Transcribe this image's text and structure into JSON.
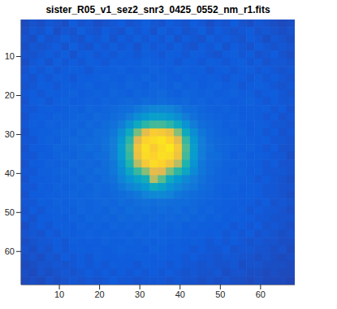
{
  "chart_data": {
    "type": "heatmap",
    "title": "sister_R05_v1_sez2_snr3_0425_0552_nm_r1.fits",
    "x": [
      1.5,
      3.5,
      5.5,
      7.5,
      9.5,
      11.5,
      13.5,
      15.5,
      17.5,
      19.5,
      21.5,
      23.5,
      25.5,
      27.5,
      29.5,
      31.5,
      33.5,
      35.5,
      37.5,
      39.5,
      41.5,
      43.5,
      45.5,
      47.5,
      49.5,
      51.5,
      53.5,
      55.5,
      57.5,
      59.5,
      61.5,
      63.5,
      65.5,
      67.5
    ],
    "y": [
      1.5,
      3.5,
      5.5,
      7.5,
      9.5,
      11.5,
      13.5,
      15.5,
      17.5,
      19.5,
      21.5,
      23.5,
      25.5,
      27.5,
      29.5,
      31.5,
      33.5,
      35.5,
      37.5,
      39.5,
      41.5,
      43.5,
      45.5,
      47.5,
      49.5,
      51.5,
      53.5,
      55.5,
      57.5,
      59.5,
      61.5,
      63.5,
      65.5,
      67.5
    ],
    "cells": [
      [
        7,
        9,
        8,
        10,
        9,
        8,
        11,
        9,
        10,
        8,
        9,
        10,
        11,
        9,
        10,
        12,
        10,
        9,
        11,
        10,
        9,
        11,
        10,
        8,
        10,
        9,
        11,
        9,
        8,
        10,
        9,
        8,
        7,
        8
      ],
      [
        8,
        10,
        9,
        11,
        8,
        10,
        9,
        12,
        10,
        9,
        11,
        10,
        9,
        12,
        10,
        11,
        9,
        12,
        10,
        11,
        9,
        10,
        12,
        9,
        11,
        10,
        9,
        10,
        11,
        9,
        10,
        9,
        8,
        9
      ],
      [
        9,
        8,
        11,
        9,
        10,
        12,
        10,
        9,
        11,
        10,
        12,
        9,
        11,
        10,
        12,
        10,
        11,
        10,
        12,
        9,
        11,
        10,
        9,
        12,
        10,
        11,
        10,
        9,
        11,
        10,
        8,
        10,
        9,
        8
      ],
      [
        8,
        10,
        9,
        10,
        11,
        9,
        12,
        10,
        9,
        11,
        10,
        12,
        10,
        11,
        9,
        12,
        10,
        11,
        10,
        12,
        10,
        9,
        11,
        10,
        12,
        9,
        11,
        10,
        9,
        11,
        10,
        9,
        10,
        9
      ],
      [
        9,
        9,
        10,
        11,
        10,
        12,
        9,
        11,
        12,
        10,
        11,
        10,
        12,
        11,
        10,
        12,
        11,
        10,
        12,
        11,
        10,
        12,
        11,
        10,
        9,
        11,
        12,
        10,
        11,
        9,
        10,
        11,
        9,
        8
      ],
      [
        8,
        10,
        11,
        9,
        12,
        10,
        11,
        10,
        12,
        11,
        10,
        12,
        11,
        12,
        11,
        13,
        12,
        11,
        12,
        10,
        12,
        11,
        10,
        12,
        11,
        10,
        11,
        12,
        10,
        11,
        9,
        10,
        10,
        9
      ],
      [
        9,
        11,
        10,
        12,
        10,
        11,
        12,
        11,
        10,
        12,
        11,
        12,
        13,
        11,
        12,
        12,
        13,
        12,
        11,
        13,
        12,
        11,
        12,
        10,
        11,
        12,
        10,
        11,
        12,
        10,
        11,
        10,
        9,
        10
      ],
      [
        10,
        9,
        11,
        10,
        12,
        11,
        10,
        12,
        11,
        12,
        13,
        12,
        11,
        13,
        12,
        14,
        12,
        13,
        12,
        11,
        13,
        12,
        11,
        12,
        11,
        10,
        12,
        11,
        10,
        12,
        10,
        11,
        10,
        9
      ],
      [
        9,
        10,
        12,
        11,
        10,
        12,
        11,
        12,
        13,
        11,
        12,
        13,
        12,
        14,
        13,
        12,
        14,
        13,
        12,
        14,
        12,
        13,
        11,
        12,
        13,
        11,
        12,
        10,
        11,
        12,
        11,
        10,
        9,
        10
      ],
      [
        10,
        11,
        10,
        12,
        11,
        12,
        13,
        11,
        12,
        13,
        12,
        14,
        13,
        12,
        14,
        13,
        14,
        15,
        13,
        12,
        14,
        13,
        12,
        13,
        11,
        12,
        13,
        11,
        12,
        10,
        11,
        12,
        10,
        9
      ],
      [
        9,
        11,
        12,
        10,
        12,
        13,
        11,
        12,
        13,
        12,
        14,
        13,
        14,
        15,
        14,
        16,
        15,
        16,
        15,
        14,
        15,
        13,
        14,
        12,
        13,
        12,
        11,
        12,
        13,
        11,
        10,
        11,
        10,
        10
      ],
      [
        10,
        10,
        11,
        12,
        11,
        12,
        13,
        12,
        14,
        13,
        14,
        15,
        16,
        17,
        20,
        23,
        25,
        25,
        24,
        21,
        17,
        16,
        14,
        13,
        12,
        13,
        12,
        11,
        12,
        11,
        12,
        10,
        11,
        9
      ],
      [
        9,
        11,
        12,
        11,
        13,
        12,
        13,
        14,
        13,
        15,
        14,
        16,
        18,
        22,
        28,
        32,
        35,
        35,
        32,
        28,
        22,
        18,
        15,
        14,
        13,
        12,
        13,
        11,
        12,
        11,
        10,
        11,
        9,
        10
      ],
      [
        10,
        12,
        11,
        13,
        12,
        13,
        14,
        13,
        15,
        14,
        16,
        18,
        22,
        30,
        40,
        48,
        52,
        52,
        48,
        40,
        30,
        22,
        17,
        15,
        14,
        12,
        13,
        12,
        11,
        12,
        11,
        10,
        10,
        9
      ],
      [
        9,
        11,
        12,
        12,
        13,
        14,
        13,
        15,
        14,
        16,
        17,
        20,
        28,
        40,
        60,
        80,
        88,
        86,
        82,
        62,
        40,
        28,
        20,
        16,
        14,
        13,
        12,
        13,
        11,
        12,
        10,
        11,
        9,
        10
      ],
      [
        10,
        10,
        12,
        13,
        12,
        14,
        15,
        14,
        15,
        16,
        18,
        22,
        32,
        48,
        78,
        90,
        92,
        94,
        90,
        80,
        50,
        32,
        22,
        17,
        15,
        14,
        13,
        12,
        12,
        11,
        12,
        10,
        10,
        9
      ],
      [
        9,
        11,
        11,
        12,
        14,
        13,
        14,
        15,
        16,
        15,
        18,
        22,
        34,
        52,
        84,
        93,
        88,
        92,
        95,
        86,
        54,
        34,
        22,
        18,
        15,
        14,
        13,
        12,
        13,
        11,
        10,
        11,
        9,
        9
      ],
      [
        10,
        10,
        12,
        11,
        13,
        14,
        13,
        15,
        14,
        16,
        17,
        22,
        33,
        50,
        82,
        92,
        90,
        93,
        92,
        84,
        52,
        33,
        22,
        17,
        16,
        14,
        12,
        13,
        11,
        12,
        11,
        10,
        10,
        8
      ],
      [
        9,
        11,
        11,
        13,
        12,
        13,
        15,
        14,
        15,
        14,
        17,
        20,
        30,
        46,
        70,
        86,
        92,
        90,
        84,
        70,
        46,
        30,
        20,
        16,
        15,
        13,
        13,
        12,
        12,
        11,
        10,
        11,
        9,
        9
      ],
      [
        10,
        10,
        12,
        12,
        13,
        14,
        13,
        15,
        14,
        16,
        16,
        20,
        27,
        38,
        50,
        62,
        80,
        78,
        60,
        48,
        38,
        27,
        20,
        16,
        14,
        13,
        12,
        13,
        11,
        12,
        10,
        10,
        10,
        9
      ],
      [
        9,
        11,
        11,
        12,
        12,
        13,
        14,
        13,
        15,
        14,
        16,
        18,
        24,
        30,
        36,
        42,
        70,
        55,
        40,
        32,
        26,
        22,
        18,
        15,
        14,
        13,
        13,
        12,
        12,
        10,
        11,
        10,
        9,
        8
      ],
      [
        10,
        10,
        12,
        11,
        13,
        12,
        13,
        14,
        13,
        15,
        14,
        16,
        20,
        24,
        28,
        32,
        40,
        36,
        30,
        26,
        22,
        20,
        16,
        15,
        13,
        12,
        13,
        11,
        12,
        11,
        10,
        10,
        9,
        9
      ],
      [
        9,
        11,
        11,
        12,
        12,
        13,
        14,
        13,
        14,
        15,
        14,
        15,
        16,
        18,
        20,
        24,
        26,
        26,
        24,
        20,
        18,
        16,
        15,
        14,
        13,
        12,
        12,
        11,
        12,
        11,
        10,
        10,
        9,
        8
      ],
      [
        10,
        10,
        12,
        11,
        13,
        12,
        13,
        14,
        13,
        14,
        15,
        14,
        16,
        15,
        17,
        18,
        17,
        18,
        17,
        16,
        16,
        15,
        14,
        13,
        13,
        12,
        12,
        11,
        11,
        10,
        11,
        9,
        10,
        9
      ],
      [
        9,
        11,
        10,
        12,
        12,
        13,
        12,
        14,
        13,
        14,
        13,
        15,
        14,
        16,
        15,
        16,
        15,
        16,
        15,
        16,
        14,
        15,
        13,
        14,
        12,
        12,
        11,
        12,
        10,
        11,
        10,
        10,
        9,
        8
      ],
      [
        10,
        9,
        11,
        11,
        12,
        11,
        13,
        12,
        14,
        13,
        14,
        13,
        15,
        14,
        15,
        14,
        15,
        14,
        15,
        14,
        15,
        13,
        14,
        12,
        13,
        11,
        12,
        11,
        11,
        10,
        10,
        9,
        9,
        9
      ],
      [
        8,
        10,
        11,
        10,
        12,
        12,
        11,
        13,
        12,
        13,
        12,
        14,
        13,
        14,
        13,
        14,
        13,
        14,
        13,
        14,
        12,
        13,
        12,
        12,
        11,
        12,
        10,
        11,
        10,
        11,
        9,
        10,
        9,
        8
      ],
      [
        9,
        10,
        9,
        11,
        10,
        12,
        11,
        12,
        13,
        12,
        13,
        12,
        13,
        12,
        14,
        13,
        14,
        13,
        12,
        13,
        12,
        11,
        12,
        11,
        12,
        10,
        11,
        10,
        11,
        9,
        10,
        9,
        8,
        9
      ],
      [
        8,
        9,
        10,
        10,
        11,
        10,
        12,
        11,
        12,
        11,
        13,
        12,
        12,
        13,
        12,
        13,
        12,
        13,
        12,
        12,
        11,
        12,
        11,
        10,
        11,
        10,
        11,
        10,
        9,
        10,
        9,
        9,
        8,
        8
      ],
      [
        9,
        8,
        10,
        9,
        11,
        10,
        11,
        12,
        11,
        12,
        11,
        12,
        13,
        12,
        12,
        11,
        13,
        12,
        11,
        12,
        11,
        10,
        11,
        10,
        10,
        11,
        9,
        10,
        10,
        9,
        9,
        8,
        9,
        7
      ],
      [
        8,
        9,
        8,
        10,
        9,
        11,
        10,
        11,
        10,
        12,
        11,
        11,
        12,
        11,
        12,
        12,
        11,
        12,
        11,
        11,
        10,
        11,
        10,
        10,
        9,
        10,
        10,
        9,
        9,
        8,
        9,
        8,
        7,
        8
      ],
      [
        7,
        8,
        9,
        9,
        10,
        9,
        10,
        11,
        10,
        11,
        10,
        12,
        11,
        11,
        10,
        12,
        11,
        11,
        10,
        11,
        10,
        10,
        9,
        10,
        9,
        9,
        10,
        8,
        9,
        9,
        8,
        8,
        8,
        7
      ],
      [
        8,
        7,
        9,
        8,
        9,
        10,
        9,
        10,
        11,
        10,
        11,
        10,
        11,
        10,
        11,
        10,
        11,
        10,
        11,
        10,
        9,
        10,
        9,
        9,
        10,
        8,
        9,
        9,
        8,
        8,
        7,
        8,
        7,
        7
      ],
      [
        7,
        8,
        7,
        9,
        8,
        9,
        10,
        9,
        10,
        9,
        10,
        11,
        10,
        10,
        9,
        10,
        10,
        10,
        9,
        10,
        9,
        9,
        8,
        9,
        8,
        9,
        8,
        8,
        7,
        8,
        7,
        7,
        7,
        6
      ]
    ],
    "clim": [
      0,
      100
    ],
    "xlim": [
      0.5,
      68.5
    ],
    "ylim": [
      0.5,
      68.5
    ],
    "xticks": [
      10,
      20,
      30,
      40,
      50,
      60
    ],
    "yticks": [
      10,
      20,
      30,
      40,
      50,
      60
    ]
  }
}
